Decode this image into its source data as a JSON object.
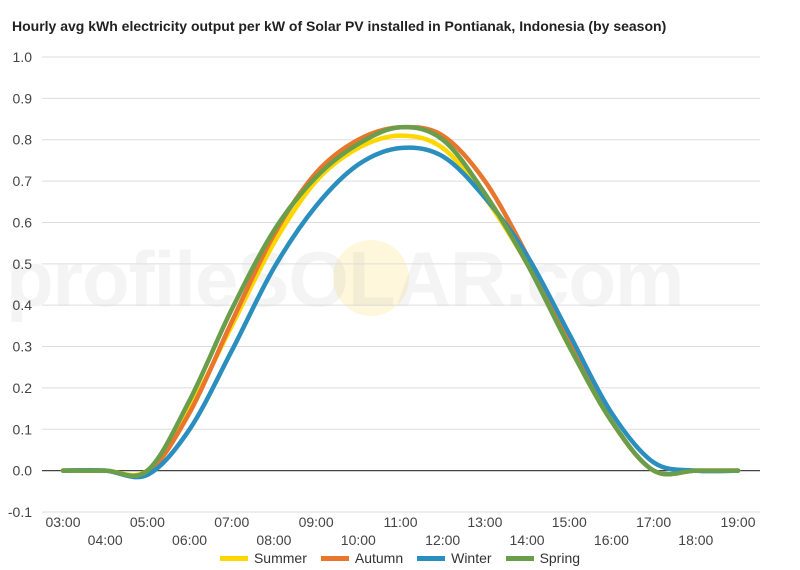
{
  "chart_data": {
    "type": "line",
    "title": "Hourly avg kWh electricity output per kW of Solar PV installed in Pontianak, Indonesia (by season)",
    "xlabel": "",
    "ylabel": "",
    "ylim": [
      -0.1,
      1.0
    ],
    "y_ticks": [
      "1.0",
      "0.9",
      "0.8",
      "0.7",
      "0.6",
      "0.5",
      "0.4",
      "0.3",
      "0.2",
      "0.1",
      "0.0",
      "-0.1"
    ],
    "x": [
      "03:00",
      "04:00",
      "05:00",
      "06:00",
      "07:00",
      "08:00",
      "09:00",
      "10:00",
      "11:00",
      "12:00",
      "13:00",
      "14:00",
      "15:00",
      "16:00",
      "17:00",
      "18:00",
      "19:00"
    ],
    "grid": true,
    "legend_position": "bottom",
    "series": [
      {
        "name": "Summer",
        "color": "#ffd700",
        "values": [
          0.0,
          0.0,
          0.0,
          0.15,
          0.35,
          0.55,
          0.7,
          0.78,
          0.81,
          0.78,
          0.66,
          0.5,
          0.3,
          0.12,
          0.0,
          0.0,
          0.0
        ]
      },
      {
        "name": "Autumn",
        "color": "#e8762d",
        "values": [
          0.0,
          0.0,
          -0.005,
          0.14,
          0.36,
          0.57,
          0.72,
          0.8,
          0.83,
          0.81,
          0.7,
          0.52,
          0.31,
          0.12,
          0.0,
          0.0,
          0.0
        ]
      },
      {
        "name": "Winter",
        "color": "#2a8fbf",
        "values": [
          0.0,
          0.0,
          -0.01,
          0.1,
          0.29,
          0.49,
          0.64,
          0.74,
          0.78,
          0.76,
          0.66,
          0.52,
          0.33,
          0.14,
          0.02,
          0.0,
          0.0
        ]
      },
      {
        "name": "Spring",
        "color": "#6a9e4b",
        "values": [
          0.0,
          0.0,
          0.0,
          0.17,
          0.39,
          0.58,
          0.71,
          0.79,
          0.83,
          0.8,
          0.67,
          0.5,
          0.3,
          0.12,
          0.0,
          0.0,
          0.0
        ]
      }
    ]
  },
  "watermark": "profileSOLAR.com"
}
